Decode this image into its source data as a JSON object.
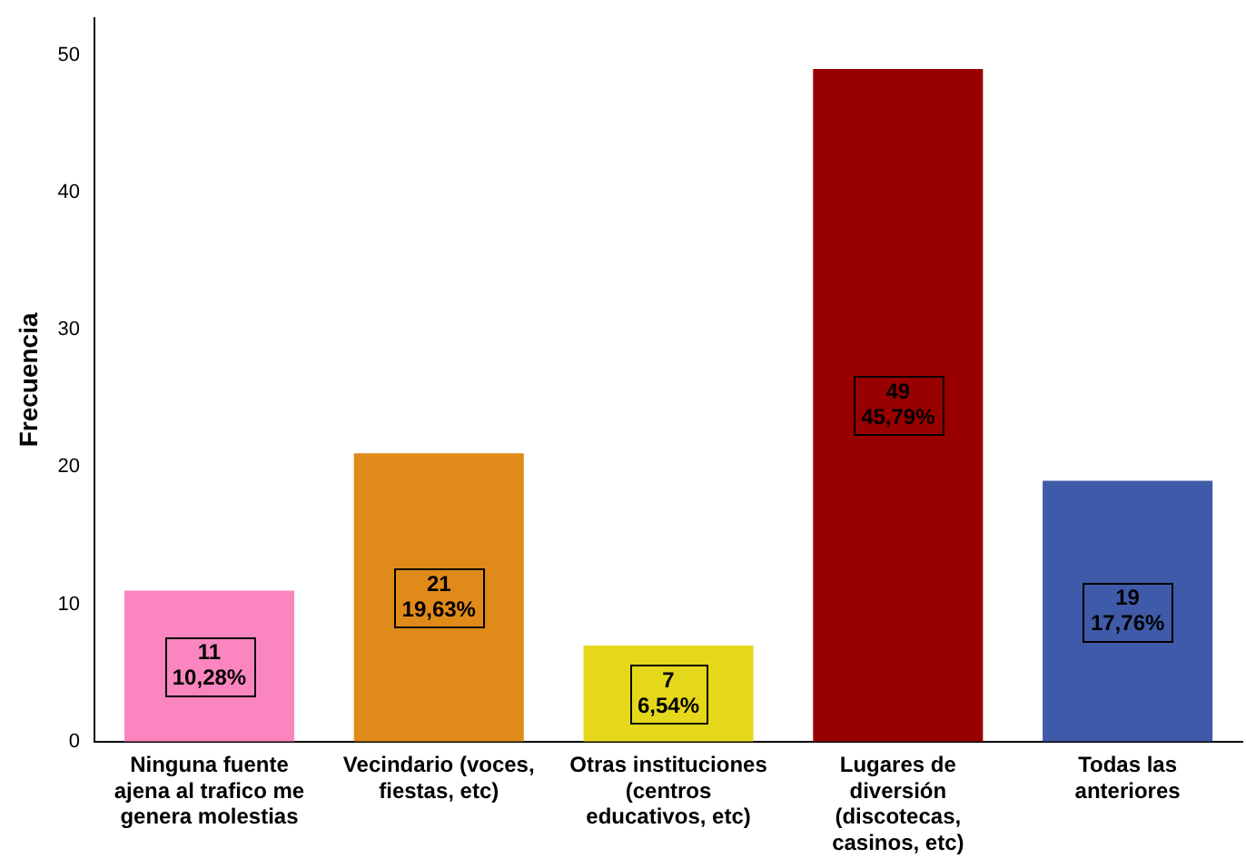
{
  "chart_data": {
    "type": "bar",
    "ylabel": "Frecuencia",
    "categories": [
      "Ninguna fuente ajena al trafico me genera molestias",
      "Vecindario (voces, fiestas, etc)",
      "Otras instituciones (centros educativos, etc)",
      "Lugares de diversión (discotecas, casinos, etc)",
      "Todas las anteriores"
    ],
    "values": [
      11,
      21,
      7,
      49,
      19
    ],
    "colors": [
      "#fb86bf",
      "#e08a1a",
      "#e5d81a",
      "#990000",
      "#3f5aa8"
    ],
    "value_labels": [
      "11\n10,28%",
      "21\n19,63%",
      "7\n6,54%",
      "49\n45,79%",
      "19\n17,76%"
    ],
    "ylim": [
      0,
      52.7
    ],
    "yticks": [
      0,
      10,
      20,
      30,
      40,
      50
    ],
    "grid": false,
    "legend": false
  }
}
